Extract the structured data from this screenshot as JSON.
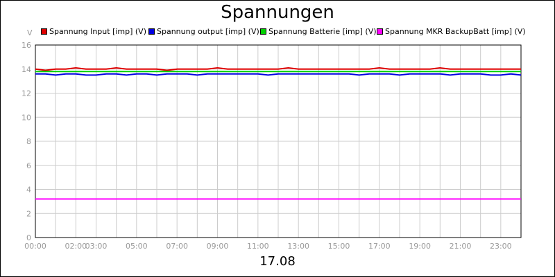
{
  "chart_data": {
    "type": "line",
    "title": "Spannungen",
    "xlabel": "17.08",
    "ylabel": "V",
    "ylim": [
      0,
      16
    ],
    "yticks": [
      0,
      2,
      4,
      6,
      8,
      10,
      12,
      14,
      16
    ],
    "xlim": [
      0,
      24
    ],
    "xticks": [
      {
        "value": 0,
        "label": "00:00"
      },
      {
        "value": 2,
        "label": "02:00"
      },
      {
        "value": 3,
        "label": "03:00"
      },
      {
        "value": 5,
        "label": "05:00"
      },
      {
        "value": 7,
        "label": "07:00"
      },
      {
        "value": 9,
        "label": "09:00"
      },
      {
        "value": 11,
        "label": "11:00"
      },
      {
        "value": 13,
        "label": "13:00"
      },
      {
        "value": 15,
        "label": "15:00"
      },
      {
        "value": 17,
        "label": "17:00"
      },
      {
        "value": 19,
        "label": "19:00"
      },
      {
        "value": 21,
        "label": "21:00"
      },
      {
        "value": 23,
        "label": "23:00"
      }
    ],
    "grid": true,
    "legend_position": "top",
    "x": [
      0,
      0.5,
      1,
      1.5,
      2,
      2.5,
      3,
      3.5,
      4,
      4.5,
      5,
      5.5,
      6,
      6.5,
      7,
      7.5,
      8,
      8.5,
      9,
      9.5,
      10,
      10.5,
      11,
      11.5,
      12,
      12.5,
      13,
      13.5,
      14,
      14.5,
      15,
      15.5,
      16,
      16.5,
      17,
      17.5,
      18,
      18.5,
      19,
      19.5,
      20,
      20.5,
      21,
      21.5,
      22,
      22.5,
      23,
      23.5,
      24
    ],
    "series": [
      {
        "name": "Spannung Input [imp] (V)",
        "color": "#e00000",
        "values": [
          14.0,
          13.9,
          14.0,
          14.0,
          14.1,
          14.0,
          14.0,
          14.0,
          14.1,
          14.0,
          14.0,
          14.0,
          14.0,
          13.9,
          14.0,
          14.0,
          14.0,
          14.0,
          14.1,
          14.0,
          14.0,
          14.0,
          14.0,
          14.0,
          14.0,
          14.1,
          14.0,
          14.0,
          14.0,
          14.0,
          14.0,
          14.0,
          14.0,
          14.0,
          14.1,
          14.0,
          14.0,
          14.0,
          14.0,
          14.0,
          14.1,
          14.0,
          14.0,
          14.0,
          14.0,
          14.0,
          14.0,
          14.0,
          14.0
        ]
      },
      {
        "name": "Spannung output [imp] (V)",
        "color": "#0000e0",
        "values": [
          13.6,
          13.6,
          13.5,
          13.6,
          13.6,
          13.5,
          13.5,
          13.6,
          13.6,
          13.5,
          13.6,
          13.6,
          13.5,
          13.6,
          13.6,
          13.6,
          13.5,
          13.6,
          13.6,
          13.6,
          13.6,
          13.6,
          13.6,
          13.5,
          13.6,
          13.6,
          13.6,
          13.6,
          13.6,
          13.6,
          13.6,
          13.6,
          13.5,
          13.6,
          13.6,
          13.6,
          13.5,
          13.6,
          13.6,
          13.6,
          13.6,
          13.5,
          13.6,
          13.6,
          13.6,
          13.5,
          13.5,
          13.6,
          13.5
        ]
      },
      {
        "name": "Spannung Batterie [imp] (V)",
        "color": "#00d000",
        "values": [
          13.8,
          13.8,
          13.8,
          13.8,
          13.8,
          13.8,
          13.8,
          13.8,
          13.8,
          13.8,
          13.8,
          13.8,
          13.8,
          13.8,
          13.8,
          13.8,
          13.8,
          13.8,
          13.8,
          13.8,
          13.8,
          13.8,
          13.8,
          13.8,
          13.8,
          13.8,
          13.8,
          13.8,
          13.8,
          13.8,
          13.8,
          13.8,
          13.8,
          13.8,
          13.8,
          13.8,
          13.8,
          13.8,
          13.8,
          13.8,
          13.8,
          13.8,
          13.8,
          13.8,
          13.8,
          13.8,
          13.8,
          13.8,
          13.8
        ]
      },
      {
        "name": "Spannung MKR BackupBatt [imp] (V)",
        "color": "#ff00ff",
        "values": [
          3.2,
          3.2,
          3.2,
          3.2,
          3.2,
          3.2,
          3.2,
          3.2,
          3.2,
          3.2,
          3.2,
          3.2,
          3.2,
          3.2,
          3.2,
          3.2,
          3.2,
          3.2,
          3.2,
          3.2,
          3.2,
          3.2,
          3.2,
          3.2,
          3.2,
          3.2,
          3.2,
          3.2,
          3.2,
          3.2,
          3.2,
          3.2,
          3.2,
          3.2,
          3.2,
          3.2,
          3.2,
          3.2,
          3.2,
          3.2,
          3.2,
          3.2,
          3.2,
          3.2,
          3.2,
          3.2,
          3.2,
          3.2,
          3.2
        ]
      }
    ]
  }
}
